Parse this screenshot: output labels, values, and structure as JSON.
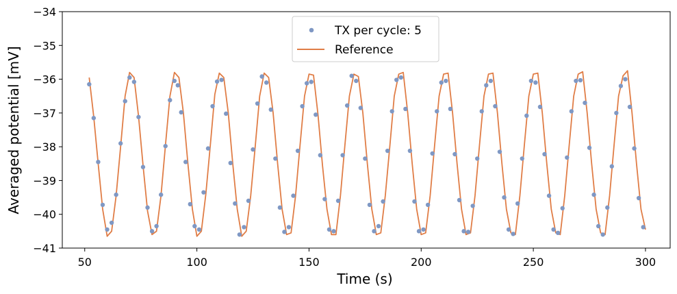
{
  "chart_data": {
    "type": "scatter",
    "xlabel": "Time (s)",
    "ylabel": "Averaged potential [mV]",
    "xlim": [
      40,
      311
    ],
    "ylim": [
      -41,
      -34
    ],
    "xticks": [
      50,
      100,
      150,
      200,
      250,
      300
    ],
    "yticks": [
      -41,
      -40,
      -39,
      -38,
      -37,
      -36,
      -35,
      -34
    ],
    "grid": false,
    "legend_position": "top-center",
    "series": [
      {
        "name": "TX per cycle: 5",
        "kind": "scatter",
        "color": "#7f98c4",
        "points": [
          [
            52,
            -36.15
          ],
          [
            54,
            -37.15
          ],
          [
            56,
            -38.45
          ],
          [
            58,
            -39.72
          ],
          [
            60,
            -40.45
          ],
          [
            62,
            -40.25
          ],
          [
            64,
            -39.42
          ],
          [
            66,
            -37.9
          ],
          [
            68,
            -36.65
          ],
          [
            70,
            -35.95
          ],
          [
            72,
            -36.08
          ],
          [
            74,
            -37.12
          ],
          [
            76,
            -38.6
          ],
          [
            78,
            -39.8
          ],
          [
            80,
            -40.5
          ],
          [
            82,
            -40.35
          ],
          [
            84,
            -39.42
          ],
          [
            86,
            -37.98
          ],
          [
            88,
            -36.62
          ],
          [
            90,
            -36.05
          ],
          [
            91.5,
            -36.18
          ],
          [
            93,
            -36.98
          ],
          [
            95,
            -38.45
          ],
          [
            97,
            -39.7
          ],
          [
            99,
            -40.35
          ],
          [
            101,
            -40.45
          ],
          [
            103,
            -39.35
          ],
          [
            105,
            -38.05
          ],
          [
            107,
            -36.8
          ],
          [
            109,
            -36.07
          ],
          [
            111,
            -36.02
          ],
          [
            113,
            -37.02
          ],
          [
            115,
            -38.48
          ],
          [
            117,
            -39.68
          ],
          [
            119,
            -40.6
          ],
          [
            121,
            -40.38
          ],
          [
            123,
            -39.6
          ],
          [
            125,
            -38.08
          ],
          [
            127,
            -36.72
          ],
          [
            129,
            -35.92
          ],
          [
            131,
            -36.1
          ],
          [
            133,
            -36.9
          ],
          [
            135,
            -38.35
          ],
          [
            137,
            -39.8
          ],
          [
            139,
            -40.52
          ],
          [
            141,
            -40.38
          ],
          [
            143,
            -39.45
          ],
          [
            145,
            -38.12
          ],
          [
            147,
            -36.8
          ],
          [
            149,
            -36.12
          ],
          [
            151,
            -36.08
          ],
          [
            153,
            -37.05
          ],
          [
            155,
            -38.25
          ],
          [
            157,
            -39.55
          ],
          [
            159,
            -40.45
          ],
          [
            161,
            -40.5
          ],
          [
            163,
            -39.6
          ],
          [
            165,
            -38.25
          ],
          [
            167,
            -36.78
          ],
          [
            169,
            -35.9
          ],
          [
            171,
            -36.05
          ],
          [
            173,
            -36.85
          ],
          [
            175,
            -38.35
          ],
          [
            177,
            -39.72
          ],
          [
            179,
            -40.5
          ],
          [
            181,
            -40.35
          ],
          [
            183,
            -39.62
          ],
          [
            185,
            -38.12
          ],
          [
            187,
            -36.95
          ],
          [
            189,
            -36.02
          ],
          [
            191,
            -35.95
          ],
          [
            193,
            -36.88
          ],
          [
            195,
            -38.12
          ],
          [
            197,
            -39.62
          ],
          [
            199,
            -40.5
          ],
          [
            201,
            -40.45
          ],
          [
            203,
            -39.72
          ],
          [
            205,
            -38.2
          ],
          [
            207,
            -36.95
          ],
          [
            209,
            -36.1
          ],
          [
            211,
            -36.05
          ],
          [
            213,
            -36.88
          ],
          [
            215,
            -38.22
          ],
          [
            217,
            -39.58
          ],
          [
            219,
            -40.5
          ],
          [
            221,
            -40.52
          ],
          [
            223,
            -39.75
          ],
          [
            225,
            -38.35
          ],
          [
            227,
            -36.95
          ],
          [
            229,
            -36.18
          ],
          [
            231,
            -36.05
          ],
          [
            233,
            -36.8
          ],
          [
            235,
            -38.15
          ],
          [
            237,
            -39.5
          ],
          [
            239,
            -40.45
          ],
          [
            241,
            -40.58
          ],
          [
            243,
            -39.68
          ],
          [
            245,
            -38.35
          ],
          [
            247,
            -37.08
          ],
          [
            249,
            -36.05
          ],
          [
            251,
            -36.1
          ],
          [
            253,
            -36.82
          ],
          [
            255,
            -38.22
          ],
          [
            257,
            -39.45
          ],
          [
            259,
            -40.45
          ],
          [
            261,
            -40.55
          ],
          [
            263,
            -39.82
          ],
          [
            265,
            -38.32
          ],
          [
            267,
            -36.95
          ],
          [
            269,
            -36.05
          ],
          [
            271,
            -36.03
          ],
          [
            273,
            -36.7
          ],
          [
            275,
            -38.03
          ],
          [
            277,
            -39.42
          ],
          [
            279,
            -40.35
          ],
          [
            281,
            -40.6
          ],
          [
            283,
            -39.8
          ],
          [
            285,
            -38.58
          ],
          [
            287,
            -37.0
          ],
          [
            289,
            -36.2
          ],
          [
            291,
            -36.0
          ],
          [
            293,
            -36.82
          ],
          [
            295,
            -38.05
          ],
          [
            297,
            -39.52
          ],
          [
            299,
            -40.38
          ]
        ]
      },
      {
        "name": "Reference",
        "kind": "line",
        "color": "#e07d46",
        "points": [
          [
            52,
            -35.95
          ],
          [
            54,
            -37.1
          ],
          [
            56,
            -38.5
          ],
          [
            58,
            -39.85
          ],
          [
            60,
            -40.65
          ],
          [
            62,
            -40.5
          ],
          [
            64,
            -39.45
          ],
          [
            66,
            -38.0
          ],
          [
            68,
            -36.5
          ],
          [
            70,
            -35.8
          ],
          [
            72,
            -35.95
          ],
          [
            74,
            -37.1
          ],
          [
            76,
            -38.55
          ],
          [
            78,
            -39.9
          ],
          [
            80,
            -40.6
          ],
          [
            82,
            -40.5
          ],
          [
            84,
            -39.45
          ],
          [
            86,
            -37.95
          ],
          [
            88,
            -36.5
          ],
          [
            90,
            -35.8
          ],
          [
            92,
            -35.95
          ],
          [
            94,
            -37.0
          ],
          [
            96,
            -38.5
          ],
          [
            98,
            -39.85
          ],
          [
            100,
            -40.65
          ],
          [
            102,
            -40.5
          ],
          [
            104,
            -39.4
          ],
          [
            106,
            -37.95
          ],
          [
            108,
            -36.45
          ],
          [
            110,
            -35.82
          ],
          [
            112,
            -35.95
          ],
          [
            114,
            -37.0
          ],
          [
            116,
            -38.5
          ],
          [
            118,
            -39.85
          ],
          [
            120,
            -40.65
          ],
          [
            122,
            -40.5
          ],
          [
            124,
            -39.45
          ],
          [
            126,
            -38.0
          ],
          [
            128,
            -36.5
          ],
          [
            130,
            -35.82
          ],
          [
            132,
            -35.95
          ],
          [
            134,
            -37.0
          ],
          [
            136,
            -38.5
          ],
          [
            138,
            -39.85
          ],
          [
            140,
            -40.6
          ],
          [
            142,
            -40.55
          ],
          [
            144,
            -39.45
          ],
          [
            146,
            -37.95
          ],
          [
            148,
            -36.5
          ],
          [
            150,
            -35.85
          ],
          [
            152,
            -35.88
          ],
          [
            154,
            -37.05
          ],
          [
            156,
            -38.55
          ],
          [
            158,
            -39.85
          ],
          [
            160,
            -40.6
          ],
          [
            162,
            -40.6
          ],
          [
            164,
            -39.45
          ],
          [
            166,
            -37.95
          ],
          [
            168,
            -36.5
          ],
          [
            170,
            -35.85
          ],
          [
            172,
            -35.92
          ],
          [
            174,
            -37.0
          ],
          [
            176,
            -38.5
          ],
          [
            178,
            -39.85
          ],
          [
            180,
            -40.6
          ],
          [
            182,
            -40.55
          ],
          [
            184,
            -39.45
          ],
          [
            186,
            -38.0
          ],
          [
            188,
            -36.5
          ],
          [
            190,
            -35.85
          ],
          [
            192,
            -35.8
          ],
          [
            194,
            -37.0
          ],
          [
            196,
            -38.5
          ],
          [
            198,
            -39.85
          ],
          [
            200,
            -40.6
          ],
          [
            202,
            -40.55
          ],
          [
            204,
            -39.45
          ],
          [
            206,
            -37.95
          ],
          [
            208,
            -36.5
          ],
          [
            210,
            -35.85
          ],
          [
            212,
            -35.82
          ],
          [
            214,
            -37.0
          ],
          [
            216,
            -38.5
          ],
          [
            218,
            -39.85
          ],
          [
            220,
            -40.6
          ],
          [
            222,
            -40.55
          ],
          [
            224,
            -39.45
          ],
          [
            226,
            -37.95
          ],
          [
            228,
            -36.5
          ],
          [
            230,
            -35.85
          ],
          [
            232,
            -35.82
          ],
          [
            234,
            -37.0
          ],
          [
            236,
            -38.5
          ],
          [
            238,
            -39.85
          ],
          [
            240,
            -40.55
          ],
          [
            242,
            -40.6
          ],
          [
            244,
            -39.45
          ],
          [
            246,
            -37.95
          ],
          [
            248,
            -36.5
          ],
          [
            250,
            -35.85
          ],
          [
            252,
            -35.82
          ],
          [
            254,
            -37.0
          ],
          [
            256,
            -38.5
          ],
          [
            258,
            -39.85
          ],
          [
            260,
            -40.55
          ],
          [
            262,
            -40.6
          ],
          [
            264,
            -39.45
          ],
          [
            266,
            -37.95
          ],
          [
            268,
            -36.5
          ],
          [
            270,
            -35.85
          ],
          [
            272,
            -35.78
          ],
          [
            274,
            -37.0
          ],
          [
            276,
            -38.5
          ],
          [
            278,
            -39.85
          ],
          [
            280,
            -40.55
          ],
          [
            282,
            -40.6
          ],
          [
            284,
            -39.45
          ],
          [
            286,
            -37.95
          ],
          [
            288,
            -36.5
          ],
          [
            290,
            -35.9
          ],
          [
            292,
            -35.75
          ],
          [
            294,
            -37.0
          ],
          [
            296,
            -38.5
          ],
          [
            298,
            -39.85
          ],
          [
            300,
            -40.45
          ]
        ]
      }
    ]
  }
}
